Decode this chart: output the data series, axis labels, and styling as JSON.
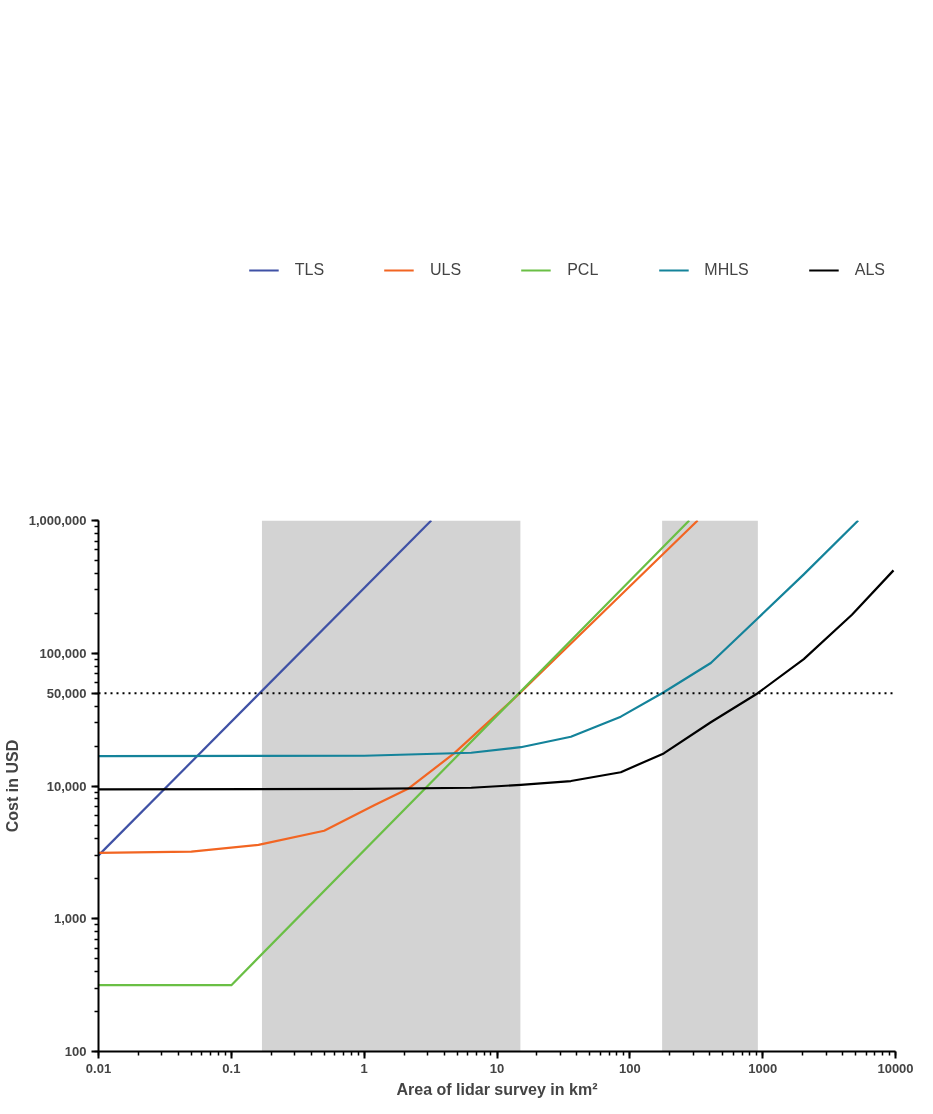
{
  "chart_data": {
    "type": "line",
    "xlabel": "Area of lidar survey in km²",
    "ylabel": "Cost in USD",
    "log": "xy",
    "grid": false,
    "legend": "top",
    "line_style": "solid",
    "xlim": [
      0.01,
      10000
    ],
    "xticks": [
      {
        "value": 0.01,
        "label": "0.01"
      },
      {
        "value": 0.1,
        "label": "0.1"
      },
      1,
      10,
      100,
      1000,
      10000
    ],
    "ylim": [
      100,
      1000000
    ],
    "yticks": [
      100,
      {
        "value": 1000,
        "label": "1,000"
      },
      {
        "value": 10000,
        "label": "10,000"
      },
      {
        "value": 50000,
        "label": "50,000"
      },
      {
        "value": 100000,
        "label": "100,000"
      },
      {
        "value": 1000000,
        "label": "1,000,000"
      }
    ],
    "ref_lines": [
      {
        "axis": "y",
        "value": 50000,
        "label": null,
        "color": "#000000",
        "line_style": "dotted"
      }
    ],
    "bands": [
      {
        "axis": "x",
        "from": 0.17,
        "to": 15,
        "label": null,
        "color": "#d3d3d3"
      },
      {
        "axis": "x",
        "from": 175,
        "to": 920,
        "label": null,
        "color": "#d3d3d3"
      }
    ],
    "series": [
      {
        "name": "TLS",
        "color": "#3f51a5",
        "x": [
          0.01,
          3.2
        ],
        "values": [
          3000,
          1000000
        ]
      },
      {
        "name": "ULS",
        "color": "#f26522",
        "x": [
          0.01,
          0.05,
          0.16,
          0.5,
          1.19,
          2.14,
          4.75,
          12.7,
          15.1,
          63.8,
          324
        ],
        "values": [
          3130,
          3200,
          3600,
          4600,
          7150,
          9530,
          17600,
          43200,
          50800,
          206000,
          1000000
        ]
      },
      {
        "name": "PCL",
        "color": "#6abf45",
        "x": [
          0.01,
          0.1,
          280
        ],
        "values": [
          316,
          316,
          1000000
        ]
      },
      {
        "name": "MHLS",
        "color": "#14839a",
        "x": [
          0.01,
          1,
          6.4,
          15.1,
          36,
          85.5,
          180,
          407,
          912,
          2040,
          5240
        ],
        "values": [
          16800,
          16900,
          17800,
          19600,
          23500,
          33300,
          50800,
          84500,
          182000,
          393000,
          1000000
        ]
      },
      {
        "name": "ALS",
        "color": "#000000",
        "x": [
          0.01,
          1,
          6.4,
          15.1,
          36,
          85.5,
          180,
          407,
          912,
          2040,
          4700,
          9660
        ],
        "values": [
          9440,
          9500,
          9700,
          10200,
          10900,
          12700,
          17600,
          30200,
          49800,
          90400,
          195000,
          421000
        ]
      }
    ]
  }
}
